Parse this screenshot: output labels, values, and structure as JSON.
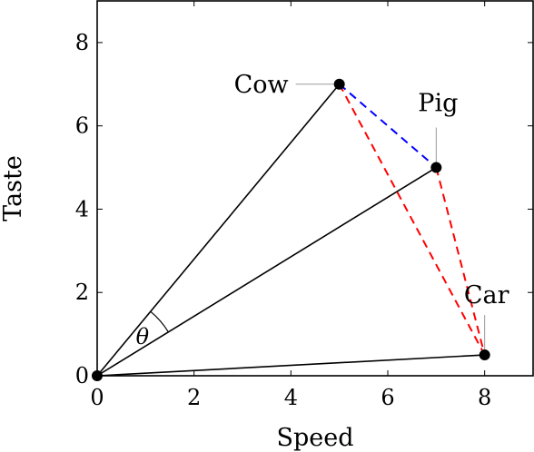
{
  "chart_data": {
    "type": "scatter",
    "title": "",
    "xlabel": "Speed",
    "ylabel": "Taste",
    "xlim": [
      0,
      9
    ],
    "ylim": [
      0,
      9
    ],
    "xticks": [
      0,
      2,
      4,
      6,
      8
    ],
    "yticks": [
      0,
      2,
      4,
      6,
      8
    ],
    "xtick_labels": [
      "0",
      "2",
      "4",
      "6",
      "8"
    ],
    "ytick_labels": [
      "0",
      "2",
      "4",
      "6",
      "8"
    ],
    "grid": false,
    "origin": {
      "x": 0,
      "y": 0
    },
    "points": [
      {
        "id": "cow",
        "label": "Cow",
        "x": 5,
        "y": 7
      },
      {
        "id": "pig",
        "label": "Pig",
        "x": 7,
        "y": 5
      },
      {
        "id": "car",
        "label": "Car",
        "x": 8,
        "y": 0.5
      }
    ],
    "vectors_from_origin": [
      "cow",
      "pig",
      "car"
    ],
    "distances": [
      {
        "from": "cow",
        "to": "pig",
        "style": "dashed",
        "color": "#0000ff"
      },
      {
        "from": "cow",
        "to": "car",
        "style": "dashed",
        "color": "#ff0000"
      },
      {
        "from": "pig",
        "to": "car",
        "style": "dashed",
        "color": "#ff0000"
      }
    ],
    "angle": {
      "label": "θ",
      "between": [
        "pig",
        "cow"
      ]
    }
  }
}
